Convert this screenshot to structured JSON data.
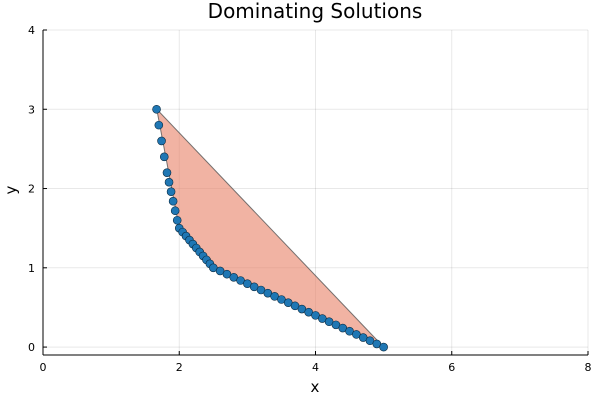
{
  "chart_data": {
    "type": "scatter",
    "title": "Dominating Solutions",
    "xlabel": "x",
    "ylabel": "y",
    "xlim": [
      0,
      8
    ],
    "ylim": [
      -0.1,
      4
    ],
    "xticks": [
      0,
      2,
      4,
      6,
      8
    ],
    "yticks": [
      0,
      1,
      2,
      3,
      4
    ],
    "xtick_labels": [
      "0",
      "2",
      "4",
      "6",
      "8"
    ],
    "ytick_labels": [
      "0",
      "1",
      "2",
      "3",
      "4"
    ],
    "grid": true,
    "legend": "none",
    "colors": {
      "points": "#1f77b4",
      "point_edge": "#0b2a40",
      "fill": "#e8846a",
      "fill_edge": "#555555"
    },
    "polygon": [
      [
        1.67,
        3.0
      ],
      [
        5.0,
        0.0
      ],
      [
        2.5,
        1.0
      ],
      [
        2.0,
        1.5
      ]
    ],
    "points": [
      [
        1.667,
        3.0
      ],
      [
        1.7,
        2.8
      ],
      [
        1.74,
        2.6
      ],
      [
        1.78,
        2.4
      ],
      [
        1.82,
        2.2
      ],
      [
        1.85,
        2.08
      ],
      [
        1.88,
        1.96
      ],
      [
        1.91,
        1.84
      ],
      [
        1.94,
        1.72
      ],
      [
        1.97,
        1.6
      ],
      [
        2.0,
        1.5
      ],
      [
        2.05,
        1.45
      ],
      [
        2.1,
        1.4
      ],
      [
        2.15,
        1.35
      ],
      [
        2.2,
        1.3
      ],
      [
        2.25,
        1.25
      ],
      [
        2.3,
        1.2
      ],
      [
        2.35,
        1.15
      ],
      [
        2.4,
        1.1
      ],
      [
        2.45,
        1.05
      ],
      [
        2.5,
        1.0
      ],
      [
        2.6,
        0.96
      ],
      [
        2.7,
        0.92
      ],
      [
        2.8,
        0.88
      ],
      [
        2.9,
        0.84
      ],
      [
        3.0,
        0.8
      ],
      [
        3.1,
        0.76
      ],
      [
        3.2,
        0.72
      ],
      [
        3.3,
        0.68
      ],
      [
        3.4,
        0.64
      ],
      [
        3.5,
        0.6
      ],
      [
        3.6,
        0.56
      ],
      [
        3.7,
        0.52
      ],
      [
        3.8,
        0.48
      ],
      [
        3.9,
        0.44
      ],
      [
        4.0,
        0.4
      ],
      [
        4.1,
        0.36
      ],
      [
        4.2,
        0.32
      ],
      [
        4.3,
        0.28
      ],
      [
        4.4,
        0.24
      ],
      [
        4.5,
        0.2
      ],
      [
        4.6,
        0.16
      ],
      [
        4.7,
        0.12
      ],
      [
        4.8,
        0.08
      ],
      [
        4.9,
        0.04
      ],
      [
        5.0,
        0.0
      ]
    ]
  }
}
